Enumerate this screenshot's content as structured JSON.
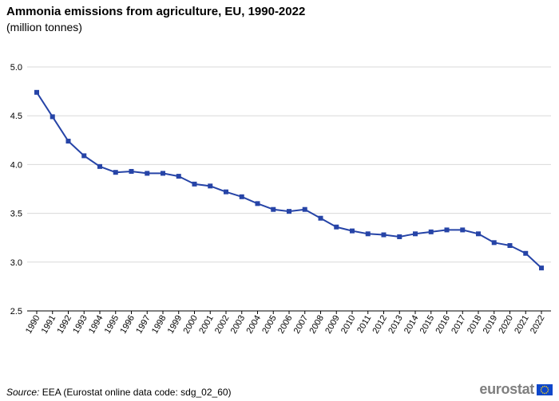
{
  "chart_data": {
    "type": "line",
    "title": "Ammonia emissions from agriculture, EU, 1990-2022",
    "subtitle": "(million tonnes)",
    "x": [
      "1990",
      "1991",
      "1992",
      "1993",
      "1994",
      "1995",
      "1996",
      "1997",
      "1998",
      "1999",
      "2000",
      "2001",
      "2002",
      "2003",
      "2004",
      "2005",
      "2006",
      "2007",
      "2008",
      "2009",
      "2010",
      "2011",
      "2012",
      "2013",
      "2014",
      "2015",
      "2016",
      "2017",
      "2018",
      "2019",
      "2020",
      "2021",
      "2022"
    ],
    "series": [
      {
        "name": "",
        "values": [
          4.74,
          4.49,
          4.24,
          4.09,
          3.98,
          3.92,
          3.93,
          3.91,
          3.91,
          3.88,
          3.8,
          3.78,
          3.72,
          3.67,
          3.6,
          3.54,
          3.52,
          3.54,
          3.45,
          3.36,
          3.32,
          3.29,
          3.28,
          3.26,
          3.29,
          3.31,
          3.33,
          3.33,
          3.29,
          3.2,
          3.17,
          3.09,
          2.94
        ]
      }
    ],
    "yticks": [
      "2.5",
      "3.0",
      "3.5",
      "4.0",
      "4.5",
      "5.0"
    ],
    "ylim": [
      2.5,
      5.0
    ],
    "xlabel": "",
    "ylabel": "",
    "grid": true,
    "legend": "none",
    "line_color": "#2644a7"
  },
  "footer": {
    "source_label": "Source:",
    "source_text": "EEA (Eurostat online data code: sdg_02_60)",
    "logo_text": "eurostat"
  }
}
